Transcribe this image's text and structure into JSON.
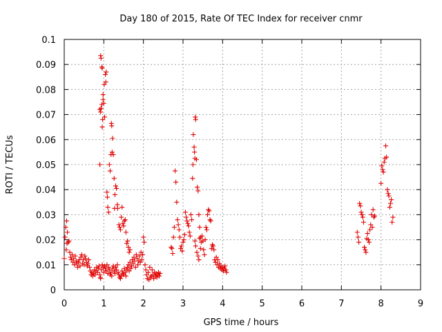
{
  "chart_data": {
    "type": "scatter",
    "title": "Day 180 of 2015, Rate Of TEC Index for receiver cnmr",
    "xlabel": "GPS time / hours",
    "ylabel": "ROTI / TECUs",
    "xlim": [
      0,
      9
    ],
    "ylim": [
      0,
      0.1
    ],
    "xticks": [
      "0",
      "1",
      "2",
      "3",
      "4",
      "5",
      "6",
      "7",
      "8",
      "9"
    ],
    "yticks": [
      "0",
      "0.01",
      "0.02",
      "0.03",
      "0.04",
      "0.05",
      "0.06",
      "0.07",
      "0.08",
      "0.09",
      "0.1"
    ],
    "grid": true,
    "marker": "+",
    "color": "#e00000",
    "series": [
      {
        "name": "ROTI",
        "points": [
          [
            0.0,
            0.0125
          ],
          [
            0.02,
            0.021
          ],
          [
            0.04,
            0.025
          ],
          [
            0.05,
            0.016
          ],
          [
            0.06,
            0.0275
          ],
          [
            0.07,
            0.0185
          ],
          [
            0.08,
            0.023
          ],
          [
            0.1,
            0.019
          ],
          [
            0.12,
            0.0195
          ],
          [
            0.14,
            0.015
          ],
          [
            0.16,
            0.013
          ],
          [
            0.18,
            0.012
          ],
          [
            0.2,
            0.014
          ],
          [
            0.22,
            0.011
          ],
          [
            0.24,
            0.0125
          ],
          [
            0.26,
            0.01
          ],
          [
            0.28,
            0.0135
          ],
          [
            0.3,
            0.0115
          ],
          [
            0.32,
            0.0105
          ],
          [
            0.34,
            0.009
          ],
          [
            0.36,
            0.011
          ],
          [
            0.38,
            0.012
          ],
          [
            0.4,
            0.0095
          ],
          [
            0.42,
            0.013
          ],
          [
            0.44,
            0.014
          ],
          [
            0.46,
            0.0105
          ],
          [
            0.48,
            0.012
          ],
          [
            0.5,
            0.01
          ],
          [
            0.52,
            0.0135
          ],
          [
            0.54,
            0.0125
          ],
          [
            0.56,
            0.011
          ],
          [
            0.58,
            0.0095
          ],
          [
            0.6,
            0.0105
          ],
          [
            0.62,
            0.012
          ],
          [
            0.64,
            0.009
          ],
          [
            0.66,
            0.0075
          ],
          [
            0.68,
            0.006
          ],
          [
            0.7,
            0.007
          ],
          [
            0.72,
            0.0055
          ],
          [
            0.74,
            0.0065
          ],
          [
            0.76,
            0.008
          ],
          [
            0.78,
            0.006
          ],
          [
            0.8,
            0.0075
          ],
          [
            0.82,
            0.009
          ],
          [
            0.84,
            0.007
          ],
          [
            0.86,
            0.0085
          ],
          [
            0.88,
            0.0095
          ],
          [
            0.9,
            0.006
          ],
          [
            0.91,
            0.005
          ],
          [
            0.92,
            0.0045
          ],
          [
            0.94,
            0.008
          ],
          [
            0.96,
            0.01
          ],
          [
            0.98,
            0.009
          ],
          [
            1.0,
            0.007
          ],
          [
            1.02,
            0.0095
          ],
          [
            1.04,
            0.0085
          ],
          [
            1.06,
            0.0075
          ],
          [
            1.08,
            0.01
          ],
          [
            1.1,
            0.0065
          ],
          [
            1.12,
            0.009
          ],
          [
            1.14,
            0.008
          ],
          [
            1.16,
            0.006
          ],
          [
            1.18,
            0.007
          ],
          [
            1.2,
            0.0055
          ],
          [
            1.22,
            0.0085
          ],
          [
            1.24,
            0.0095
          ],
          [
            1.26,
            0.0075
          ],
          [
            1.28,
            0.0065
          ],
          [
            1.3,
            0.009
          ],
          [
            1.32,
            0.008
          ],
          [
            1.34,
            0.01
          ],
          [
            1.36,
            0.007
          ],
          [
            1.38,
            0.006
          ],
          [
            1.4,
            0.005
          ],
          [
            1.42,
            0.0045
          ],
          [
            1.44,
            0.0055
          ],
          [
            1.46,
            0.0075
          ],
          [
            1.48,
            0.0065
          ],
          [
            1.5,
            0.006
          ],
          [
            1.52,
            0.0085
          ],
          [
            1.54,
            0.007
          ],
          [
            1.56,
            0.0055
          ],
          [
            1.58,
            0.008
          ],
          [
            1.6,
            0.009
          ],
          [
            1.62,
            0.01
          ],
          [
            1.64,
            0.0075
          ],
          [
            1.66,
            0.011
          ],
          [
            1.68,
            0.0085
          ],
          [
            1.7,
            0.0095
          ],
          [
            1.72,
            0.012
          ],
          [
            1.74,
            0.0105
          ],
          [
            1.76,
            0.013
          ],
          [
            1.78,
            0.0115
          ],
          [
            1.8,
            0.009
          ],
          [
            1.82,
            0.014
          ],
          [
            1.84,
            0.0125
          ],
          [
            1.86,
            0.01
          ],
          [
            1.88,
            0.0115
          ],
          [
            1.9,
            0.0135
          ],
          [
            1.92,
            0.011
          ],
          [
            1.94,
            0.015
          ],
          [
            1.96,
            0.012
          ],
          [
            1.98,
            0.014
          ],
          [
            2.0,
            0.021
          ],
          [
            2.02,
            0.019
          ],
          [
            2.04,
            0.01
          ],
          [
            2.06,
            0.008
          ],
          [
            2.08,
            0.006
          ],
          [
            2.1,
            0.0045
          ],
          [
            2.12,
            0.007
          ],
          [
            2.14,
            0.004
          ],
          [
            2.16,
            0.009
          ],
          [
            2.18,
            0.005
          ],
          [
            2.2,
            0.0055
          ],
          [
            2.22,
            0.008
          ],
          [
            2.24,
            0.006
          ],
          [
            2.26,
            0.0045
          ],
          [
            2.28,
            0.007
          ],
          [
            2.3,
            0.0055
          ],
          [
            2.32,
            0.0065
          ],
          [
            2.34,
            0.005
          ],
          [
            2.36,
            0.006
          ],
          [
            2.38,
            0.007
          ],
          [
            2.4,
            0.0055
          ],
          [
            2.42,
            0.0065
          ],
          [
            0.92,
            0.0935
          ],
          [
            0.93,
            0.0925
          ],
          [
            0.95,
            0.089
          ],
          [
            0.96,
            0.0885
          ],
          [
            0.9,
            0.072
          ],
          [
            0.92,
            0.071
          ],
          [
            0.93,
            0.0725
          ],
          [
            0.95,
            0.074
          ],
          [
            0.97,
            0.068
          ],
          [
            0.98,
            0.076
          ],
          [
            1.0,
            0.0745
          ],
          [
            1.01,
            0.082
          ],
          [
            1.02,
            0.069
          ],
          [
            1.04,
            0.086
          ],
          [
            1.05,
            0.083
          ],
          [
            1.06,
            0.087
          ],
          [
            0.98,
            0.078
          ],
          [
            0.9,
            0.05
          ],
          [
            0.96,
            0.065
          ],
          [
            1.08,
            0.039
          ],
          [
            1.09,
            0.037
          ],
          [
            1.1,
            0.033
          ],
          [
            1.12,
            0.031
          ],
          [
            1.14,
            0.05
          ],
          [
            1.16,
            0.0475
          ],
          [
            1.18,
            0.054
          ],
          [
            1.19,
            0.0665
          ],
          [
            1.2,
            0.0655
          ],
          [
            1.22,
            0.0605
          ],
          [
            1.21,
            0.055
          ],
          [
            1.24,
            0.054
          ],
          [
            1.26,
            0.0445
          ],
          [
            1.28,
            0.038
          ],
          [
            1.27,
            0.0325
          ],
          [
            1.3,
            0.0415
          ],
          [
            1.32,
            0.0405
          ],
          [
            1.34,
            0.034
          ],
          [
            1.35,
            0.0325
          ],
          [
            1.38,
            0.026
          ],
          [
            1.4,
            0.025
          ],
          [
            1.42,
            0.024
          ],
          [
            1.44,
            0.029
          ],
          [
            1.46,
            0.033
          ],
          [
            1.48,
            0.0265
          ],
          [
            1.5,
            0.0255
          ],
          [
            1.52,
            0.0275
          ],
          [
            1.54,
            0.028
          ],
          [
            1.56,
            0.023
          ],
          [
            1.58,
            0.0185
          ],
          [
            1.6,
            0.0195
          ],
          [
            1.62,
            0.017
          ],
          [
            1.64,
            0.015
          ],
          [
            1.66,
            0.016
          ],
          [
            2.7,
            0.017
          ],
          [
            2.72,
            0.0165
          ],
          [
            2.74,
            0.0145
          ],
          [
            2.76,
            0.021
          ],
          [
            2.78,
            0.025
          ],
          [
            2.8,
            0.0475
          ],
          [
            2.82,
            0.043
          ],
          [
            2.84,
            0.035
          ],
          [
            2.86,
            0.028
          ],
          [
            2.88,
            0.026
          ],
          [
            2.9,
            0.024
          ],
          [
            2.92,
            0.021
          ],
          [
            2.94,
            0.0165
          ],
          [
            2.96,
            0.0175
          ],
          [
            2.98,
            0.0155
          ],
          [
            3.0,
            0.019
          ],
          [
            3.02,
            0.02
          ],
          [
            3.04,
            0.022
          ],
          [
            3.06,
            0.031
          ],
          [
            3.08,
            0.029
          ],
          [
            3.1,
            0.0275
          ],
          [
            3.12,
            0.0265
          ],
          [
            3.14,
            0.0255
          ],
          [
            3.16,
            0.023
          ],
          [
            3.18,
            0.0215
          ],
          [
            3.2,
            0.03
          ],
          [
            3.22,
            0.028
          ],
          [
            3.24,
            0.0445
          ],
          [
            3.25,
            0.05
          ],
          [
            3.26,
            0.062
          ],
          [
            3.28,
            0.057
          ],
          [
            3.29,
            0.055
          ],
          [
            3.3,
            0.0525
          ],
          [
            3.31,
            0.069
          ],
          [
            3.32,
            0.068
          ],
          [
            3.34,
            0.052
          ],
          [
            3.36,
            0.041
          ],
          [
            3.38,
            0.0395
          ],
          [
            3.4,
            0.03
          ],
          [
            3.42,
            0.025
          ],
          [
            3.44,
            0.021
          ],
          [
            3.3,
            0.0195
          ],
          [
            3.32,
            0.0175
          ],
          [
            3.35,
            0.015
          ],
          [
            3.38,
            0.0135
          ],
          [
            3.4,
            0.012
          ],
          [
            3.42,
            0.0205
          ],
          [
            3.44,
            0.0165
          ],
          [
            3.46,
            0.019
          ],
          [
            3.48,
            0.0215
          ],
          [
            3.5,
            0.0195
          ],
          [
            3.52,
            0.016
          ],
          [
            3.54,
            0.014
          ],
          [
            3.56,
            0.02
          ],
          [
            3.58,
            0.025
          ],
          [
            3.6,
            0.024
          ],
          [
            3.62,
            0.03
          ],
          [
            3.64,
            0.032
          ],
          [
            3.66,
            0.0315
          ],
          [
            3.68,
            0.028
          ],
          [
            3.7,
            0.0275
          ],
          [
            3.72,
            0.0165
          ],
          [
            3.74,
            0.018
          ],
          [
            3.76,
            0.0175
          ],
          [
            3.78,
            0.016
          ],
          [
            3.8,
            0.012
          ],
          [
            3.82,
            0.011
          ],
          [
            3.84,
            0.013
          ],
          [
            3.86,
            0.01
          ],
          [
            3.88,
            0.012
          ],
          [
            3.9,
            0.009
          ],
          [
            3.92,
            0.0105
          ],
          [
            3.94,
            0.0085
          ],
          [
            3.96,
            0.0095
          ],
          [
            3.98,
            0.008
          ],
          [
            4.0,
            0.009
          ],
          [
            4.02,
            0.0075
          ],
          [
            4.04,
            0.0085
          ],
          [
            4.06,
            0.0095
          ],
          [
            4.08,
            0.008
          ],
          [
            4.1,
            0.007
          ],
          [
            7.4,
            0.023
          ],
          [
            7.42,
            0.021
          ],
          [
            7.44,
            0.019
          ],
          [
            7.46,
            0.0345
          ],
          [
            7.48,
            0.0335
          ],
          [
            7.5,
            0.031
          ],
          [
            7.52,
            0.03
          ],
          [
            7.54,
            0.029
          ],
          [
            7.56,
            0.027
          ],
          [
            7.58,
            0.017
          ],
          [
            7.6,
            0.016
          ],
          [
            7.62,
            0.015
          ],
          [
            7.64,
            0.0205
          ],
          [
            7.66,
            0.0225
          ],
          [
            7.68,
            0.02
          ],
          [
            7.7,
            0.019
          ],
          [
            7.72,
            0.024
          ],
          [
            7.74,
            0.026
          ],
          [
            7.76,
            0.03
          ],
          [
            7.78,
            0.025
          ],
          [
            7.8,
            0.032
          ],
          [
            7.82,
            0.029
          ],
          [
            7.84,
            0.0295
          ],
          [
            8.0,
            0.0425
          ],
          [
            8.02,
            0.0495
          ],
          [
            8.04,
            0.048
          ],
          [
            8.06,
            0.047
          ],
          [
            8.08,
            0.051
          ],
          [
            8.1,
            0.0525
          ],
          [
            8.12,
            0.0575
          ],
          [
            8.14,
            0.053
          ],
          [
            8.16,
            0.04
          ],
          [
            8.18,
            0.0385
          ],
          [
            8.2,
            0.0375
          ],
          [
            8.22,
            0.033
          ],
          [
            8.24,
            0.0345
          ],
          [
            8.26,
            0.036
          ],
          [
            8.28,
            0.027
          ],
          [
            8.3,
            0.029
          ]
        ]
      }
    ]
  }
}
